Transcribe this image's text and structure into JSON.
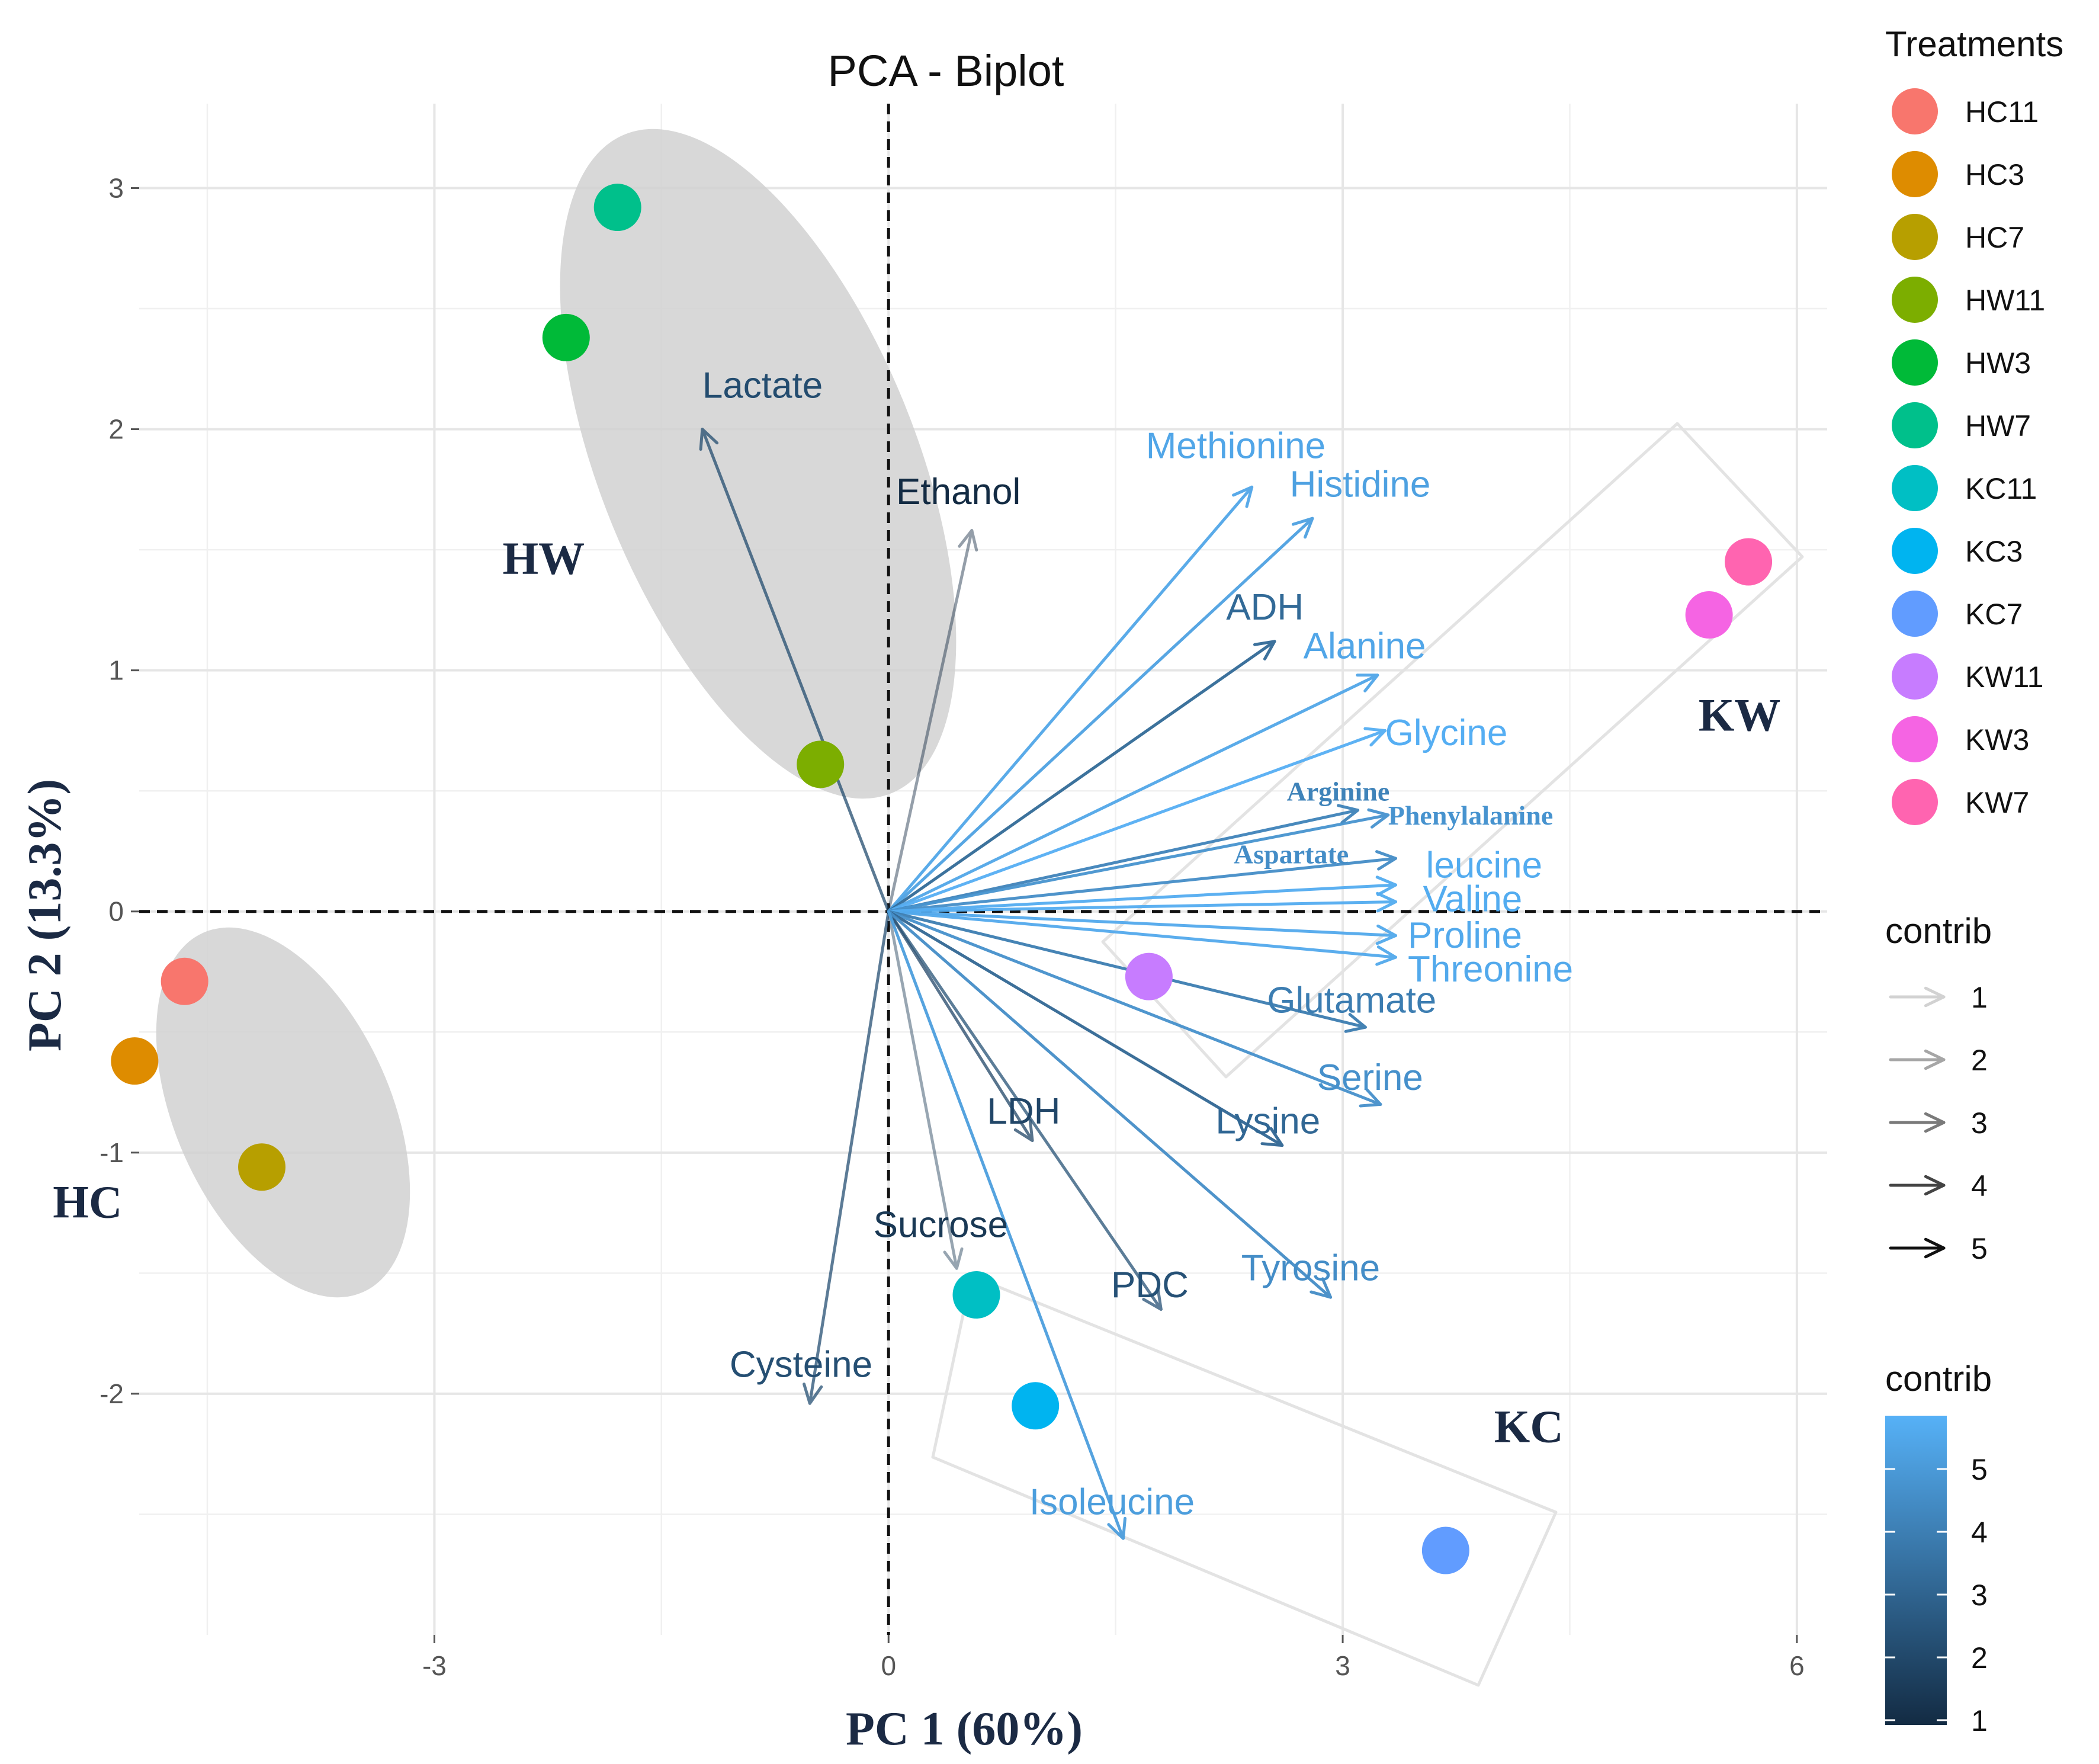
{
  "chart_data": {
    "type": "scatter",
    "title": "PCA - Biplot",
    "xlabel": "PC 1 (60%)",
    "ylabel": "PC 2 (13.3%)",
    "xlim": [
      -4.95,
      6.2
    ],
    "ylim": [
      -3.0,
      3.35
    ],
    "x_ticks": [
      -3,
      0,
      3,
      6
    ],
    "y_ticks": [
      -2,
      -1,
      0,
      1,
      2,
      3
    ],
    "grid": true,
    "reference_lines": "dashed at x=0 and y=0",
    "points": [
      {
        "label": "HC11",
        "x": -4.65,
        "y": -0.29,
        "color": "#F8766D"
      },
      {
        "label": "HC3",
        "x": -4.98,
        "y": -0.62,
        "color": "#DE8C00"
      },
      {
        "label": "HC7",
        "x": -4.14,
        "y": -1.06,
        "color": "#B79F00"
      },
      {
        "label": "HW11",
        "x": -0.45,
        "y": 0.61,
        "color": "#7CAE00"
      },
      {
        "label": "HW3",
        "x": -2.13,
        "y": 2.38,
        "color": "#00BA38"
      },
      {
        "label": "HW7",
        "x": -1.79,
        "y": 2.92,
        "color": "#00C08B"
      },
      {
        "label": "KC11",
        "x": 0.58,
        "y": -1.59,
        "color": "#00BFC4"
      },
      {
        "label": "KC3",
        "x": 0.97,
        "y": -2.05,
        "color": "#00B4F0"
      },
      {
        "label": "KC7",
        "x": 3.68,
        "y": -2.65,
        "color": "#619CFF"
      },
      {
        "label": "KW11",
        "x": 1.72,
        "y": -0.27,
        "color": "#C77CFF"
      },
      {
        "label": "KW3",
        "x": 5.42,
        "y": 1.23,
        "color": "#F564E3"
      },
      {
        "label": "KW7",
        "x": 5.68,
        "y": 1.45,
        "color": "#FF64B0"
      }
    ],
    "variables": [
      {
        "name": "Lactate",
        "x": -1.23,
        "y": 2.0,
        "contrib": 2.2,
        "lx": -1.23,
        "ly": 2.13
      },
      {
        "name": "Ethanol",
        "x": 0.55,
        "y": 1.58,
        "contrib": 1.0,
        "lx": 0.05,
        "ly": 1.69
      },
      {
        "name": "Methionine",
        "x": 2.4,
        "y": 1.76,
        "contrib": 5.5,
        "lx": 1.7,
        "ly": 1.88
      },
      {
        "name": "Histidine",
        "x": 2.8,
        "y": 1.63,
        "contrib": 5.3,
        "lx": 2.65,
        "ly": 1.72
      },
      {
        "name": "ADH",
        "x": 2.55,
        "y": 1.12,
        "contrib": 3.3,
        "lx": 2.23,
        "ly": 1.21
      },
      {
        "name": "Alanine",
        "x": 3.23,
        "y": 0.98,
        "contrib": 5.5,
        "lx": 2.74,
        "ly": 1.05
      },
      {
        "name": "Glycine",
        "x": 3.28,
        "y": 0.75,
        "contrib": 5.8,
        "lx": 3.28,
        "ly": 0.69
      },
      {
        "name": "Arginine",
        "x": 3.1,
        "y": 0.42,
        "contrib": 4.2,
        "lx": 2.63,
        "ly": 0.46
      },
      {
        "name": "Phenylalanine",
        "x": 3.3,
        "y": 0.4,
        "contrib": 4.8,
        "lx": 3.3,
        "ly": 0.36
      },
      {
        "name": "Aspartate",
        "x": 3.35,
        "y": 0.22,
        "contrib": 4.6,
        "lx": 2.28,
        "ly": 0.2
      },
      {
        "name": "leucine",
        "x": 3.35,
        "y": 0.11,
        "contrib": 5.7,
        "lx": 3.55,
        "ly": 0.14
      },
      {
        "name": "Valine",
        "x": 3.35,
        "y": 0.04,
        "contrib": 5.7,
        "lx": 3.53,
        "ly": 0.0
      },
      {
        "name": "Proline",
        "x": 3.35,
        "y": -0.1,
        "contrib": 5.6,
        "lx": 3.43,
        "ly": -0.15
      },
      {
        "name": "Threonine",
        "x": 3.35,
        "y": -0.19,
        "contrib": 5.6,
        "lx": 3.43,
        "ly": -0.29
      },
      {
        "name": "Glutamate",
        "x": 3.15,
        "y": -0.48,
        "contrib": 4.0,
        "lx": 2.5,
        "ly": -0.42
      },
      {
        "name": "Serine",
        "x": 3.25,
        "y": -0.8,
        "contrib": 4.7,
        "lx": 2.83,
        "ly": -0.74
      },
      {
        "name": "Lysine",
        "x": 2.6,
        "y": -0.97,
        "contrib": 3.2,
        "lx": 2.16,
        "ly": -0.92
      },
      {
        "name": "LDH",
        "x": 0.95,
        "y": -0.95,
        "contrib": 2.0,
        "lx": 0.65,
        "ly": -0.88
      },
      {
        "name": "Sucrose",
        "x": 0.45,
        "y": -1.48,
        "contrib": 1.5,
        "lx": -0.1,
        "ly": -1.35
      },
      {
        "name": "PDC",
        "x": 1.8,
        "y": -1.65,
        "contrib": 2.4,
        "lx": 1.47,
        "ly": -1.6
      },
      {
        "name": "Tyrosine",
        "x": 2.92,
        "y": -1.6,
        "contrib": 4.6,
        "lx": 2.33,
        "ly": -1.53
      },
      {
        "name": "Cysteine",
        "x": -0.52,
        "y": -2.04,
        "contrib": 2.3,
        "lx": -1.05,
        "ly": -1.93
      },
      {
        "name": "Isoleucine",
        "x": 1.55,
        "y": -2.6,
        "contrib": 5.2,
        "lx": 0.93,
        "ly": -2.5
      }
    ],
    "groups": [
      {
        "label": "HW",
        "lx": -2.55,
        "ly": 1.4
      },
      {
        "label": "HC",
        "lx": -5.52,
        "ly": -1.27
      },
      {
        "label": "KW",
        "lx": 5.35,
        "ly": 0.75
      },
      {
        "label": "KC",
        "lx": 4.0,
        "ly": -2.2
      }
    ],
    "legend": {
      "position": "right",
      "treatments_title": "Treatments",
      "contrib_arrow_title": "contrib",
      "contrib_arrow_levels": [
        "1",
        "2",
        "3",
        "4",
        "5"
      ],
      "contrib_colorbar_title": "contrib",
      "contrib_colorbar_ticks": [
        "5",
        "4",
        "3",
        "2",
        "1"
      ]
    }
  }
}
